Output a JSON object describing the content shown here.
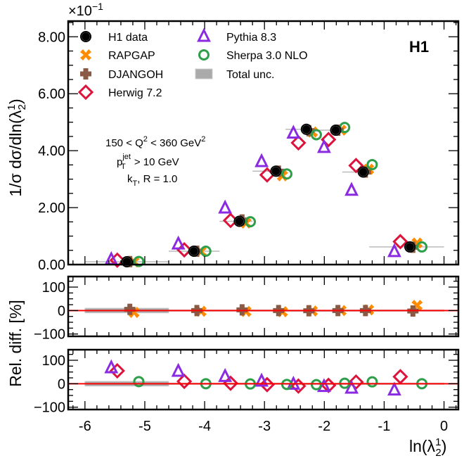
{
  "chart_data": {
    "type": "scatter",
    "experiment_label": "H1",
    "scale_label": "×10",
    "scale_exponent": "−1",
    "ylabel": "1/σ dσ/dln(λ",
    "ylabel_sub": "2",
    "ylabel_sup": "1",
    "xlabel": "ln(λ",
    "xlabel_sub": "2",
    "xlabel_sup": "1",
    "ratio_ylabel": "Rel. diff. [%]",
    "xlim": [
      -6.28,
      0.24
    ],
    "ylim": [
      0,
      8.55
    ],
    "ratio_ylim": [
      -110,
      145
    ],
    "x_ticks": [
      "-6",
      "-5",
      "-4",
      "-3",
      "-2",
      "-1",
      "0"
    ],
    "y_ticks": [
      "0.00",
      "2.00",
      "4.00",
      "6.00",
      "8.00"
    ],
    "ratio_ticks": [
      "100",
      "0",
      "−100"
    ],
    "annotation": {
      "line1": "150 < Q",
      "line1_sup1": "2",
      "line1_b": " < 360 GeV",
      "line1_sup2": "2",
      "line2": "p",
      "line2_sub": "T",
      "line2_sup": "jet",
      "line2_b": " > 10 GeV",
      "line3": "k",
      "line3_sub": "T",
      "line3_b": ", R = 1.0"
    },
    "bin_edges": [
      -6.0,
      -4.6,
      -3.75,
      -3.2,
      -2.65,
      -2.15,
      -1.7,
      -1.25,
      0.0
    ],
    "x_centers": [
      -5.3,
      -4.18,
      -3.42,
      -2.81,
      -2.3,
      -1.81,
      -1.35,
      -0.57
    ],
    "data": {
      "name": "H1 data",
      "values": [
        0.1,
        0.47,
        1.52,
        3.28,
        4.75,
        4.72,
        3.25,
        0.62
      ],
      "total_unc_percent": [
        10,
        3,
        3,
        3,
        2,
        2,
        3,
        3
      ]
    },
    "series": [
      {
        "name": "RAPGAP",
        "color": "#ff8c00",
        "marker": "x-filled",
        "panel": 1,
        "rel_diff_percent": [
          -8,
          -3,
          -4,
          -5,
          -2,
          0,
          3,
          22
        ]
      },
      {
        "name": "DJANGOH",
        "color": "#8b5a45",
        "marker": "plus-filled",
        "panel": 1,
        "rel_diff_percent": [
          5,
          0,
          3,
          0,
          -1,
          0,
          0,
          -2
        ]
      },
      {
        "name": "Herwig 7.2",
        "color": "#dc143c",
        "marker": "diamond-open",
        "panel": 2,
        "rel_diff_percent": [
          55,
          10,
          2,
          -4,
          -10,
          -7,
          7,
          30
        ]
      },
      {
        "name": "Pythia 8.3",
        "color": "#8a2be2",
        "marker": "triangle-open",
        "panel": 2,
        "rel_diff_percent": [
          67,
          52,
          30,
          10,
          -3,
          -13,
          -20,
          -28
        ]
      },
      {
        "name": "Sherpa 3.0 NLO",
        "color": "#2e9e4a",
        "marker": "circle-open",
        "panel": 2,
        "rel_diff_percent": [
          9,
          0,
          -1,
          -3,
          -4,
          2,
          8,
          0
        ]
      }
    ],
    "legend": {
      "placement": "top-left",
      "entries": [
        "H1 data",
        "RAPGAP",
        "DJANGOH",
        "Herwig 7.2",
        "Pythia 8.3",
        "Sherpa 3.0 NLO",
        "Total unc."
      ]
    }
  }
}
